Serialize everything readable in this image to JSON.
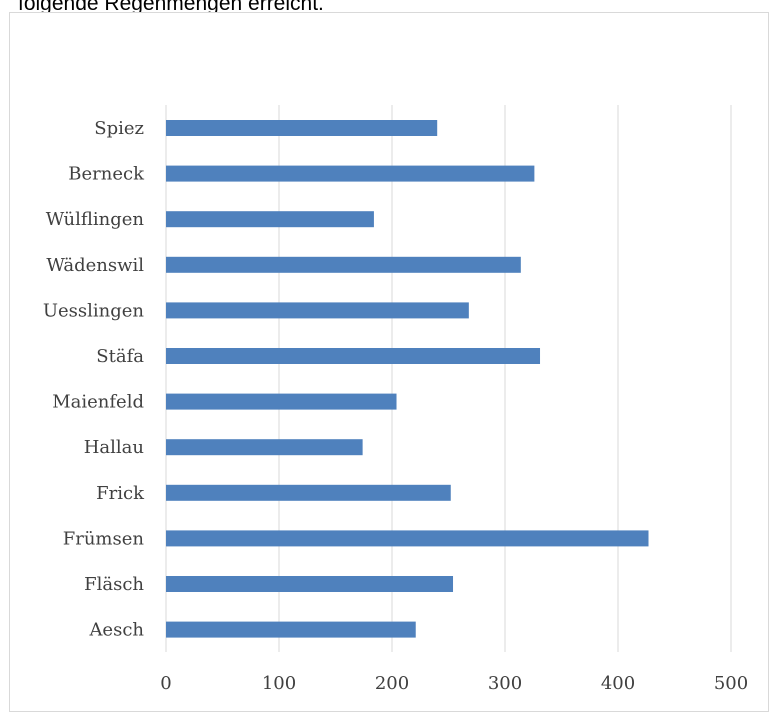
{
  "header": {
    "text": "folgende Regenmengen erreicht."
  },
  "chart_data": {
    "type": "bar",
    "orientation": "horizontal",
    "categories": [
      "Spiez",
      "Berneck",
      "Wülflingen",
      "Wädenswil",
      "Uesslingen",
      "Stäfa",
      "Maienfeld",
      "Hallau",
      "Frick",
      "Frümsen",
      "Fläsch",
      "Aesch"
    ],
    "values": [
      240,
      326,
      184,
      314,
      268,
      331,
      204,
      174,
      252,
      427,
      254,
      221
    ],
    "xlim": [
      0,
      500
    ],
    "xticks": [
      "0",
      "100",
      "200",
      "300",
      "400",
      "500"
    ],
    "grid": true,
    "bar_color": "#4f81bd",
    "grid_color": "#d9d9d9"
  }
}
